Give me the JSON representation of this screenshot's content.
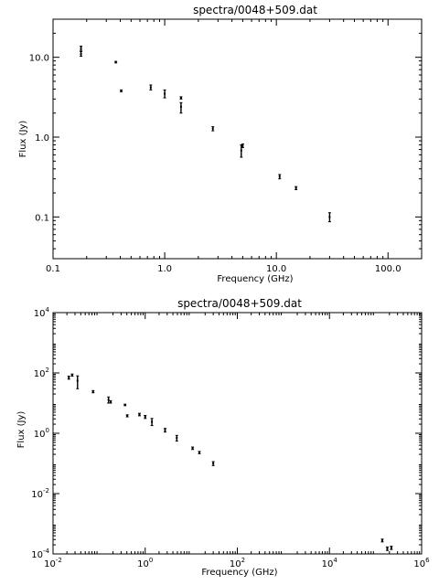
{
  "chart_data": [
    {
      "type": "scatter",
      "title": "spectra/0048+509.dat",
      "xlabel": "Frequency (GHz)",
      "ylabel": "Flux (Jy)",
      "xscale": "log",
      "yscale": "log",
      "xlim": [
        0.1,
        200
      ],
      "ylim": [
        0.03,
        30
      ],
      "xticks": [
        {
          "value": 0.1,
          "label": "0.1"
        },
        {
          "value": 1,
          "label": "1.0"
        },
        {
          "value": 10,
          "label": "10.0"
        },
        {
          "value": 100,
          "label": "100.0"
        }
      ],
      "yticks": [
        {
          "value": 0.1,
          "label": "0.1"
        },
        {
          "value": 1,
          "label": "1.0"
        },
        {
          "value": 10,
          "label": "10.0"
        }
      ],
      "points": [
        {
          "x": 0.178,
          "y": 13.0,
          "ylo": 12.2,
          "yhi": 13.8
        },
        {
          "x": 0.178,
          "y": 11.0,
          "ylo": 10.3,
          "yhi": 11.8
        },
        {
          "x": 0.365,
          "y": 8.7,
          "ylo": 8.5,
          "yhi": 8.9
        },
        {
          "x": 0.408,
          "y": 3.8,
          "ylo": 3.7,
          "yhi": 3.9
        },
        {
          "x": 0.75,
          "y": 4.2,
          "ylo": 3.9,
          "yhi": 4.5
        },
        {
          "x": 1.0,
          "y": 3.5,
          "ylo": 3.1,
          "yhi": 3.9
        },
        {
          "x": 1.4,
          "y": 3.1,
          "ylo": 3.0,
          "yhi": 3.2
        },
        {
          "x": 1.4,
          "y": 2.4,
          "ylo": 2.0,
          "yhi": 2.7
        },
        {
          "x": 2.7,
          "y": 1.28,
          "ylo": 1.2,
          "yhi": 1.35
        },
        {
          "x": 4.85,
          "y": 0.68,
          "ylo": 0.56,
          "yhi": 0.8
        },
        {
          "x": 5.0,
          "y": 0.78,
          "ylo": 0.74,
          "yhi": 0.82
        },
        {
          "x": 10.7,
          "y": 0.32,
          "ylo": 0.3,
          "yhi": 0.34
        },
        {
          "x": 15.0,
          "y": 0.23,
          "ylo": 0.22,
          "yhi": 0.24
        },
        {
          "x": 30.0,
          "y": 0.1,
          "ylo": 0.087,
          "yhi": 0.113
        }
      ]
    },
    {
      "type": "scatter",
      "title": "spectra/0048+509.dat",
      "xlabel": "Frequency (GHz)",
      "ylabel": "Flux (Jy)",
      "xscale": "log",
      "yscale": "log",
      "xlim": [
        0.01,
        1000000
      ],
      "ylim": [
        0.0001,
        10000
      ],
      "xticks": [
        {
          "value": 0.01,
          "base": "10",
          "exp": "-2"
        },
        {
          "value": 1,
          "base": "10",
          "exp": "0"
        },
        {
          "value": 100,
          "base": "10",
          "exp": "2"
        },
        {
          "value": 10000,
          "base": "10",
          "exp": "4"
        },
        {
          "value": 1000000,
          "base": "10",
          "exp": "6"
        }
      ],
      "yticks": [
        {
          "value": 0.0001,
          "base": "10",
          "exp": "-4"
        },
        {
          "value": 0.01,
          "base": "10",
          "exp": "-2"
        },
        {
          "value": 1,
          "base": "10",
          "exp": "0"
        },
        {
          "value": 100,
          "base": "10",
          "exp": "2"
        },
        {
          "value": 10000,
          "base": "10",
          "exp": "4"
        }
      ],
      "points": [
        {
          "x": 0.022,
          "y": 70,
          "ylo": 62,
          "yhi": 78
        },
        {
          "x": 0.026,
          "y": 85,
          "ylo": 78,
          "yhi": 92
        },
        {
          "x": 0.034,
          "y": 55,
          "ylo": 30,
          "yhi": 80
        },
        {
          "x": 0.074,
          "y": 24,
          "ylo": 22,
          "yhi": 26
        },
        {
          "x": 0.16,
          "y": 13,
          "ylo": 10,
          "yhi": 16
        },
        {
          "x": 0.178,
          "y": 11,
          "ylo": 10,
          "yhi": 12
        },
        {
          "x": 0.365,
          "y": 8.7,
          "ylo": 8.2,
          "yhi": 9.2
        },
        {
          "x": 0.408,
          "y": 3.8,
          "ylo": 3.5,
          "yhi": 4.1
        },
        {
          "x": 0.75,
          "y": 4.2,
          "ylo": 3.8,
          "yhi": 4.6
        },
        {
          "x": 1.0,
          "y": 3.5,
          "ylo": 3.1,
          "yhi": 3.9
        },
        {
          "x": 1.4,
          "y": 2.4,
          "ylo": 1.8,
          "yhi": 3.1
        },
        {
          "x": 2.7,
          "y": 1.28,
          "ylo": 1.1,
          "yhi": 1.45
        },
        {
          "x": 4.85,
          "y": 0.7,
          "ylo": 0.55,
          "yhi": 0.85
        },
        {
          "x": 10.7,
          "y": 0.32,
          "ylo": 0.29,
          "yhi": 0.35
        },
        {
          "x": 15.0,
          "y": 0.23,
          "ylo": 0.21,
          "yhi": 0.25
        },
        {
          "x": 30.0,
          "y": 0.1,
          "ylo": 0.085,
          "yhi": 0.115
        },
        {
          "x": 140000,
          "y": 0.00028,
          "ylo": 0.00025,
          "yhi": 0.00031
        },
        {
          "x": 180000,
          "y": 0.00015,
          "ylo": 0.00013,
          "yhi": 0.00017
        },
        {
          "x": 220000,
          "y": 0.00016,
          "ylo": 0.00014,
          "yhi": 0.00018
        }
      ]
    }
  ]
}
